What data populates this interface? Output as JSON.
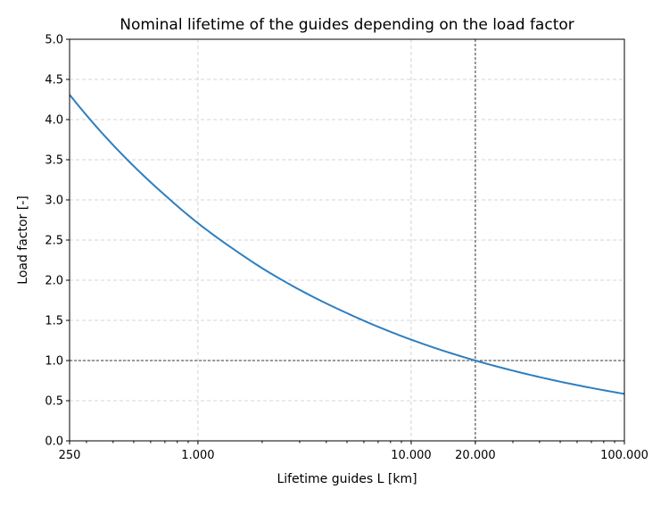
{
  "chart_data": {
    "type": "line",
    "title": "Nominal lifetime of the guides depending on the load factor",
    "xlabel": "Lifetime guides L [km]",
    "ylabel": "Load factor [-]",
    "xscale": "log",
    "xlim": [
      250,
      100000
    ],
    "ylim": [
      0,
      5
    ],
    "grid": true,
    "x_ticks": [
      250,
      1000,
      10000,
      20000,
      100000
    ],
    "x_tick_labels": [
      "250",
      "1.000",
      "10.000",
      "20.000",
      "100.000"
    ],
    "y_ticks": [
      0,
      0.5,
      1,
      1.5,
      2,
      2.5,
      3,
      3.5,
      4,
      4.5,
      5
    ],
    "y_tick_labels": [
      "0.0",
      "0.5",
      "1.0",
      "1.5",
      "2.0",
      "2.5",
      "3.0",
      "3.5",
      "4.0",
      "4.5",
      "5.0"
    ],
    "reference_lines": {
      "x": 20000,
      "y": 1.0
    },
    "series": [
      {
        "color": "#2e7fc0",
        "x": [
          250,
          350,
          500,
          700,
          1000,
          1500,
          2000,
          3000,
          5000,
          7000,
          10000,
          14000,
          20000,
          30000,
          50000,
          70000,
          100000
        ],
        "y": [
          4.31,
          3.85,
          3.42,
          3.06,
          2.71,
          2.37,
          2.15,
          1.88,
          1.59,
          1.42,
          1.26,
          1.126,
          1.0,
          0.874,
          0.737,
          0.659,
          0.585
        ]
      }
    ]
  }
}
